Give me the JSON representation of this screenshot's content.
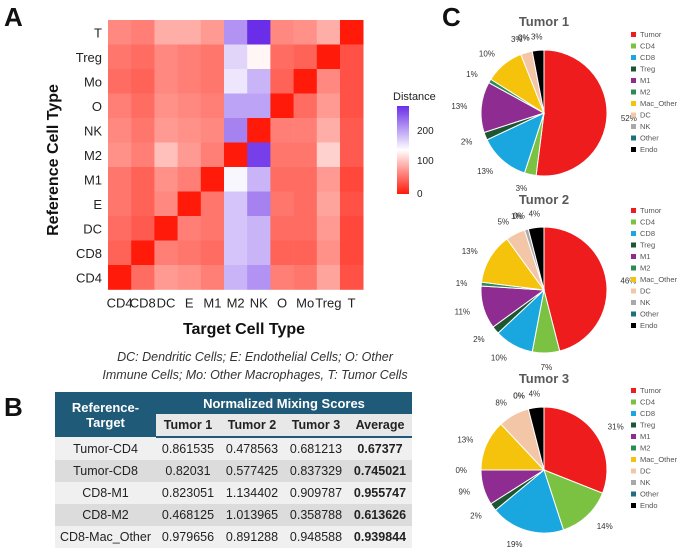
{
  "panels": {
    "a": "A",
    "b": "B",
    "c": "C"
  },
  "heatmap": {
    "ylabel": "Reference Cell Type",
    "xlabel": "Target Cell Type",
    "legend_title": "Distance",
    "legend_ticks": [
      "200",
      "100",
      "0"
    ],
    "rows": [
      "T",
      "Treg",
      "Mo",
      "O",
      "NK",
      "M2",
      "M1",
      "E",
      "DC",
      "CD8",
      "CD4"
    ],
    "cols": [
      "CD4",
      "CD8",
      "DC",
      "E",
      "M1",
      "M2",
      "NK",
      "O",
      "Mo",
      "Treg",
      "T"
    ]
  },
  "chart_data": [
    {
      "type": "heatmap",
      "title": "",
      "xlabel": "Target Cell Type",
      "ylabel": "Reference Cell Type",
      "colorbar_label": "Distance",
      "colorbar_range": [
        0,
        250
      ],
      "rows": [
        "T",
        "Treg",
        "Mo",
        "O",
        "NK",
        "M2",
        "M1",
        "E",
        "DC",
        "CD8",
        "CD4"
      ],
      "cols": [
        "CD4",
        "CD8",
        "DC",
        "E",
        "M1",
        "M2",
        "NK",
        "O",
        "Mo",
        "Treg",
        "T"
      ],
      "values": [
        [
          60,
          55,
          80,
          80,
          70,
          190,
          250,
          60,
          65,
          80,
          0
        ],
        [
          50,
          45,
          60,
          55,
          50,
          150,
          120,
          45,
          40,
          0,
          30
        ],
        [
          45,
          40,
          60,
          55,
          50,
          140,
          170,
          40,
          0,
          60,
          30
        ],
        [
          55,
          45,
          65,
          60,
          55,
          180,
          180,
          0,
          45,
          70,
          30
        ],
        [
          60,
          50,
          70,
          65,
          60,
          200,
          0,
          55,
          55,
          80,
          35
        ],
        [
          65,
          55,
          90,
          70,
          55,
          0,
          240,
          50,
          50,
          100,
          35
        ],
        [
          50,
          40,
          65,
          55,
          0,
          130,
          170,
          45,
          45,
          70,
          25
        ],
        [
          50,
          40,
          60,
          0,
          50,
          160,
          200,
          50,
          45,
          75,
          30
        ],
        [
          45,
          35,
          0,
          55,
          50,
          160,
          170,
          45,
          45,
          70,
          25
        ],
        [
          40,
          0,
          55,
          50,
          45,
          160,
          170,
          40,
          40,
          65,
          25
        ],
        [
          0,
          45,
          70,
          65,
          55,
          170,
          190,
          55,
          50,
          75,
          30
        ]
      ]
    },
    {
      "type": "pie",
      "title": "Tumor 1",
      "labels": [
        "Tumor",
        "CD4",
        "CD8",
        "Treg",
        "M1",
        "M2",
        "Mac_Other",
        "DC",
        "NK",
        "Other",
        "Endo"
      ],
      "values": [
        52,
        3,
        13,
        2,
        13,
        1,
        10,
        3,
        0,
        0,
        3
      ],
      "label_text": [
        "52%",
        "3%",
        "13%",
        "2%",
        "13%",
        "1%",
        "10%",
        "3%",
        "0%",
        "0%",
        "3%"
      ]
    },
    {
      "type": "pie",
      "title": "Tumor 2",
      "labels": [
        "Tumor",
        "CD4",
        "CD8",
        "Treg",
        "M1",
        "M2",
        "Mac_Other",
        "DC",
        "NK",
        "Other",
        "Endo"
      ],
      "values": [
        46,
        7,
        10,
        2,
        11,
        1,
        13,
        5,
        1,
        0,
        4
      ],
      "label_text": [
        "46%",
        "7%",
        "10%",
        "2%",
        "11%",
        "1%",
        "13%",
        "5%",
        "1%",
        "0%",
        "4%"
      ]
    },
    {
      "type": "pie",
      "title": "Tumor 3",
      "labels": [
        "Tumor",
        "CD4",
        "CD8",
        "Treg",
        "M1",
        "M2",
        "Mac_Other",
        "DC",
        "NK",
        "Other",
        "Endo"
      ],
      "values": [
        31,
        14,
        19,
        2,
        9,
        0,
        13,
        8,
        0,
        0,
        4
      ],
      "label_text": [
        "31%",
        "14%",
        "19%",
        "2%",
        "9%",
        "0%",
        "13%",
        "8%",
        "0%",
        "0%",
        "4%"
      ]
    }
  ],
  "legend": {
    "labels": [
      "Tumor",
      "CD4",
      "CD8",
      "Treg",
      "M1",
      "M2",
      "Mac_Other",
      "DC",
      "NK",
      "Other",
      "Endo"
    ],
    "colors": [
      "#ee1c1c",
      "#7cc242",
      "#1aa7e0",
      "#1e5631",
      "#8e2c91",
      "#2e8b57",
      "#f5c20c",
      "#f4c6a8",
      "#a9a9a9",
      "#1f6f7f",
      "#000000"
    ]
  },
  "abbreviations": {
    "line1": "DC: Dendritic Cells; E: Endothelial Cells; O: Other",
    "line2": "Immune Cells; Mo: Other Macrophages, T: Tumor Cells"
  },
  "table": {
    "header_left": "Reference-Target",
    "header_group": "Normalized Mixing Scores",
    "subheaders": [
      "Tumor 1",
      "Tumor 2",
      "Tumor 3",
      "Average"
    ],
    "rows": [
      {
        "label": "Tumor-CD4",
        "t1": "0.861535",
        "t2": "0.478563",
        "t3": "0.681213",
        "avg": "0.67377"
      },
      {
        "label": "Tumor-CD8",
        "t1": "0.82031",
        "t2": "0.577425",
        "t3": "0.837329",
        "avg": "0.745021"
      },
      {
        "label": "CD8-M1",
        "t1": "0.823051",
        "t2": "1.134402",
        "t3": "0.909787",
        "avg": "0.955747"
      },
      {
        "label": "CD8-M2",
        "t1": "0.468125",
        "t2": "1.013965",
        "t3": "0.358788",
        "avg": "0.613626"
      },
      {
        "label": "CD8-Mac_Other",
        "t1": "0.979656",
        "t2": "0.891288",
        "t3": "0.948588",
        "avg": "0.939844"
      }
    ]
  }
}
